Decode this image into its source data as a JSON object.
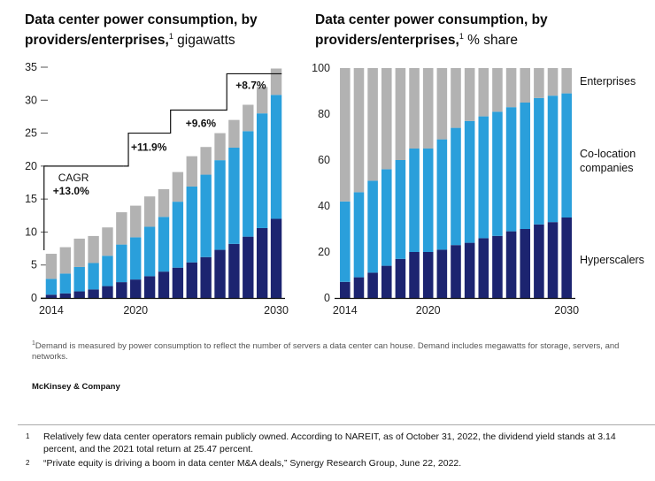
{
  "left_title": {
    "main": "Data center power consumption, by providers/enterprises,",
    "sup": "1",
    "unit": "gigawatts"
  },
  "right_title": {
    "main": "Data center power consumption, by providers/enterprises,",
    "sup": "1",
    "unit": "% share"
  },
  "chart_data": [
    {
      "type": "bar",
      "stacked": true,
      "title": "Data center power consumption, by providers/enterprises, gigawatts",
      "x_tick_labels": [
        "2014",
        "2020",
        "2030"
      ],
      "categories": [
        "2014",
        "2015",
        "2016",
        "2017",
        "2018",
        "2019",
        "2020",
        "2021",
        "2022",
        "2023",
        "2024",
        "2025",
        "2026",
        "2027",
        "2028",
        "2029",
        "2030"
      ],
      "ylim": [
        0,
        35
      ],
      "yticks": [
        0,
        5,
        10,
        15,
        20,
        25,
        30,
        35
      ],
      "series": [
        {
          "name": "Hyperscalers",
          "color": "#1c2470",
          "values": [
            0.5,
            0.7,
            1.0,
            1.3,
            1.8,
            2.4,
            2.8,
            3.3,
            4.0,
            4.6,
            5.4,
            6.2,
            7.3,
            8.2,
            9.3,
            10.6,
            12.0
          ]
        },
        {
          "name": "Co-location companies",
          "color": "#2a9fdb",
          "values": [
            2.4,
            3.0,
            3.7,
            4.0,
            4.6,
            5.7,
            6.4,
            7.5,
            8.3,
            10.0,
            11.5,
            12.5,
            13.6,
            14.6,
            16.0,
            17.4,
            18.8
          ]
        },
        {
          "name": "Enterprises",
          "color": "#b2b2b2",
          "values": [
            3.8,
            4.0,
            4.3,
            4.1,
            4.3,
            4.9,
            4.8,
            4.6,
            4.2,
            4.5,
            4.6,
            4.2,
            4.1,
            4.2,
            4.0,
            4.0,
            4.0
          ]
        }
      ],
      "annotations": [
        {
          "label": "CAGR",
          "value": "+13.0%"
        },
        {
          "value": "+11.9%"
        },
        {
          "value": "+9.6%"
        },
        {
          "value": "+8.7%"
        }
      ]
    },
    {
      "type": "bar",
      "stacked": true,
      "title": "Data center power consumption, by providers/enterprises, % share",
      "x_tick_labels": [
        "2014",
        "2020",
        "2030"
      ],
      "categories": [
        "2014",
        "2015",
        "2016",
        "2017",
        "2018",
        "2019",
        "2020",
        "2021",
        "2022",
        "2023",
        "2024",
        "2025",
        "2026",
        "2027",
        "2028",
        "2029",
        "2030"
      ],
      "ylim": [
        0,
        100
      ],
      "yticks": [
        0,
        20,
        40,
        60,
        80,
        100
      ],
      "series": [
        {
          "name": "Hyperscalers",
          "color": "#1c2470",
          "values": [
            7,
            9,
            11,
            14,
            17,
            20,
            20,
            21,
            23,
            24,
            26,
            27,
            29,
            30,
            32,
            33,
            35
          ]
        },
        {
          "name": "Co-location companies",
          "color": "#2a9fdb",
          "values": [
            35,
            37,
            40,
            42,
            43,
            45,
            45,
            48,
            51,
            53,
            53,
            54,
            54,
            55,
            55,
            55,
            54
          ]
        },
        {
          "name": "Enterprises",
          "color": "#b2b2b2",
          "values": [
            58,
            54,
            49,
            44,
            40,
            35,
            35,
            31,
            26,
            23,
            21,
            19,
            17,
            15,
            13,
            12,
            11
          ]
        }
      ],
      "legend": [
        "Enterprises",
        "Co-location companies",
        "Hyperscalers"
      ],
      "legend_position": "right"
    }
  ],
  "legend_labels": {
    "enterprises": "Enterprises",
    "colocation": "Co-location\ncompanies",
    "hyperscalers": "Hyperscalers"
  },
  "footnote": {
    "sup": "1",
    "text": "Demand is measured by power consumption to reflect the number of servers a data center can house. Demand includes megawatts for storage, servers, and networks."
  },
  "brand": "McKinsey & Company",
  "notes": [
    {
      "num": "1",
      "text": "Relatively few data center operators remain publicly owned. According to NAREIT, as of October 31, 2022, the dividend yield stands at 3.14 percent, and the 2021 total return at 25.47 percent."
    },
    {
      "num": "2",
      "text": "“Private equity is driving a boom in data center M&A deals,” Synergy Research Group, June 22, 2022."
    }
  ]
}
